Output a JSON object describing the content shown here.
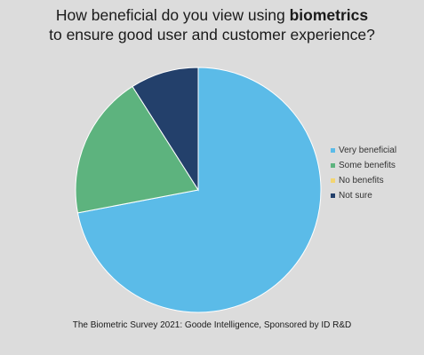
{
  "title": {
    "line1_pre": "How beneficial do you view using ",
    "line1_bold": "biometrics",
    "line2": "to ensure good user and customer experience?"
  },
  "source": "The Biometric Survey 2021: Goode Intelligence, Sponsored by ID R&D",
  "chart_data": {
    "type": "pie",
    "title": "How beneficial do you view using biometrics to ensure good user and customer experience?",
    "categories": [
      "Very beneficial",
      "Some benefits",
      "No benefits",
      "Not sure"
    ],
    "values": [
      72,
      19,
      0,
      9
    ],
    "colors": [
      "#5bbbe8",
      "#5db37e",
      "#f3d572",
      "#23406b"
    ],
    "legend_position": "right"
  }
}
